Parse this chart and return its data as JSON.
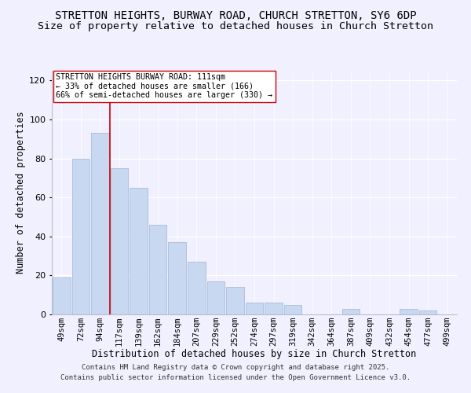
{
  "title": "STRETTON HEIGHTS, BURWAY ROAD, CHURCH STRETTON, SY6 6DP",
  "subtitle": "Size of property relative to detached houses in Church Stretton",
  "xlabel": "Distribution of detached houses by size in Church Stretton",
  "ylabel": "Number of detached properties",
  "bar_color": "#c8d8f0",
  "bar_edge_color": "#a8bcd8",
  "categories": [
    "49sqm",
    "72sqm",
    "94sqm",
    "117sqm",
    "139sqm",
    "162sqm",
    "184sqm",
    "207sqm",
    "229sqm",
    "252sqm",
    "274sqm",
    "297sqm",
    "319sqm",
    "342sqm",
    "364sqm",
    "387sqm",
    "409sqm",
    "432sqm",
    "454sqm",
    "477sqm",
    "499sqm"
  ],
  "values": [
    19,
    80,
    93,
    75,
    65,
    46,
    37,
    27,
    17,
    14,
    6,
    6,
    5,
    0,
    0,
    3,
    0,
    0,
    3,
    2,
    0
  ],
  "ylim": [
    0,
    125
  ],
  "yticks": [
    0,
    20,
    40,
    60,
    80,
    100,
    120
  ],
  "vline_color": "#cc0000",
  "vline_index": 2.5,
  "annotation_text": "STRETTON HEIGHTS BURWAY ROAD: 111sqm\n← 33% of detached houses are smaller (166)\n66% of semi-detached houses are larger (330) →",
  "footer_line1": "Contains HM Land Registry data © Crown copyright and database right 2025.",
  "footer_line2": "Contains public sector information licensed under the Open Government Licence v3.0.",
  "background_color": "#f0f0ff",
  "grid_color": "#ffffff",
  "title_fontsize": 10,
  "subtitle_fontsize": 9.5,
  "axis_fontsize": 8.5,
  "tick_fontsize": 7.5,
  "footer_fontsize": 6.5
}
